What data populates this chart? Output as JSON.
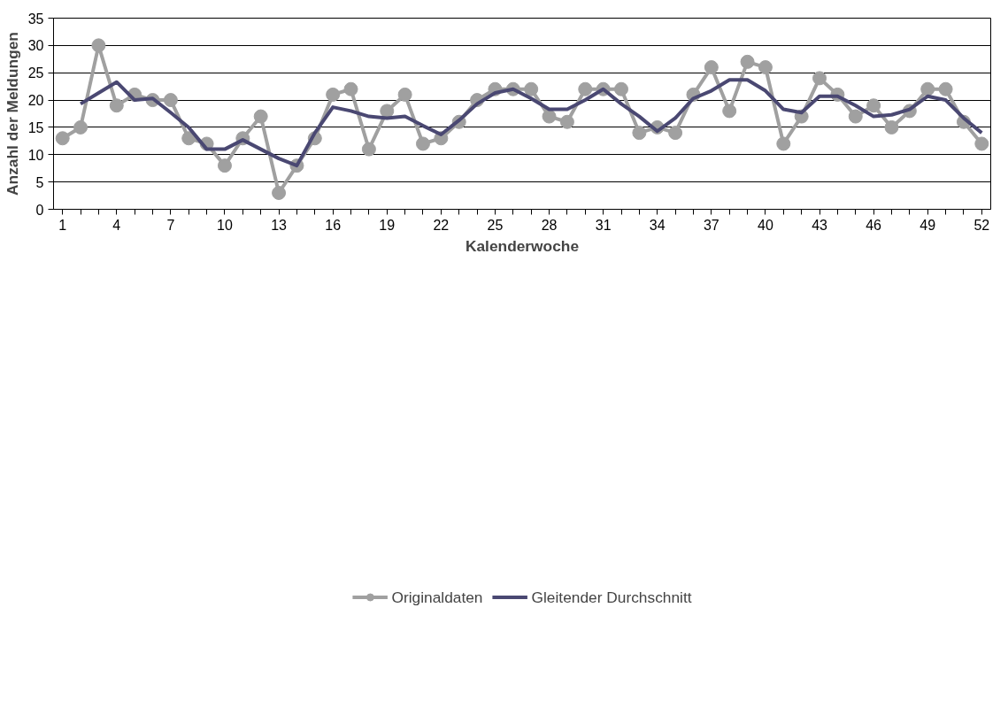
{
  "chart_data": {
    "type": "line",
    "xlabel": "Kalenderwoche",
    "ylabel": "Anzahl der Meldungen",
    "categories": [
      "1",
      null,
      null,
      "4",
      null,
      null,
      "7",
      null,
      null,
      "10",
      null,
      null,
      "13",
      null,
      null,
      "16",
      null,
      null,
      "19",
      null,
      null,
      "22",
      null,
      null,
      "25",
      null,
      null,
      "28",
      null,
      null,
      "31",
      null,
      null,
      "34",
      null,
      null,
      "37",
      null,
      null,
      "40",
      null,
      null,
      "43",
      null,
      null,
      "46",
      null,
      null,
      "49",
      null,
      null,
      "52"
    ],
    "series": [
      {
        "name": "Originaldaten",
        "color": "#a0a0a0",
        "marker": "circle",
        "values": [
          13,
          15,
          30,
          19,
          21,
          20,
          20,
          13,
          12,
          8,
          13,
          17,
          3,
          8,
          13,
          21,
          22,
          11,
          18,
          21,
          12,
          13,
          16,
          20,
          22,
          22,
          22,
          17,
          16,
          22,
          22,
          22,
          14,
          15,
          14,
          21,
          26,
          18,
          27,
          26,
          12,
          17,
          24,
          21,
          17,
          19,
          15,
          18,
          22,
          22,
          16,
          12
        ]
      },
      {
        "name": "Gleitender Durchschnitt",
        "color": "#4a4872",
        "marker": "none",
        "values": [
          null,
          19.3,
          21.3,
          23.3,
          20,
          20.3,
          17.7,
          15,
          11,
          11,
          12.7,
          11,
          9.3,
          8,
          14,
          18.7,
          18,
          17,
          16.7,
          17,
          15.3,
          13.7,
          16.3,
          19.3,
          21.3,
          22,
          20.3,
          18.3,
          18.3,
          20,
          22,
          19.3,
          17,
          14.3,
          16.7,
          20.3,
          21.7,
          23.7,
          23.7,
          21.7,
          18.3,
          17.7,
          20.7,
          20.7,
          19,
          17,
          17.3,
          18.3,
          20.7,
          20,
          16.7,
          14
        ]
      }
    ],
    "ylim": [
      0,
      35
    ],
    "yticks": [
      0,
      5,
      10,
      15,
      20,
      25,
      30,
      35
    ],
    "grid": "y",
    "legend": "bottom",
    "line_style": "solid"
  }
}
